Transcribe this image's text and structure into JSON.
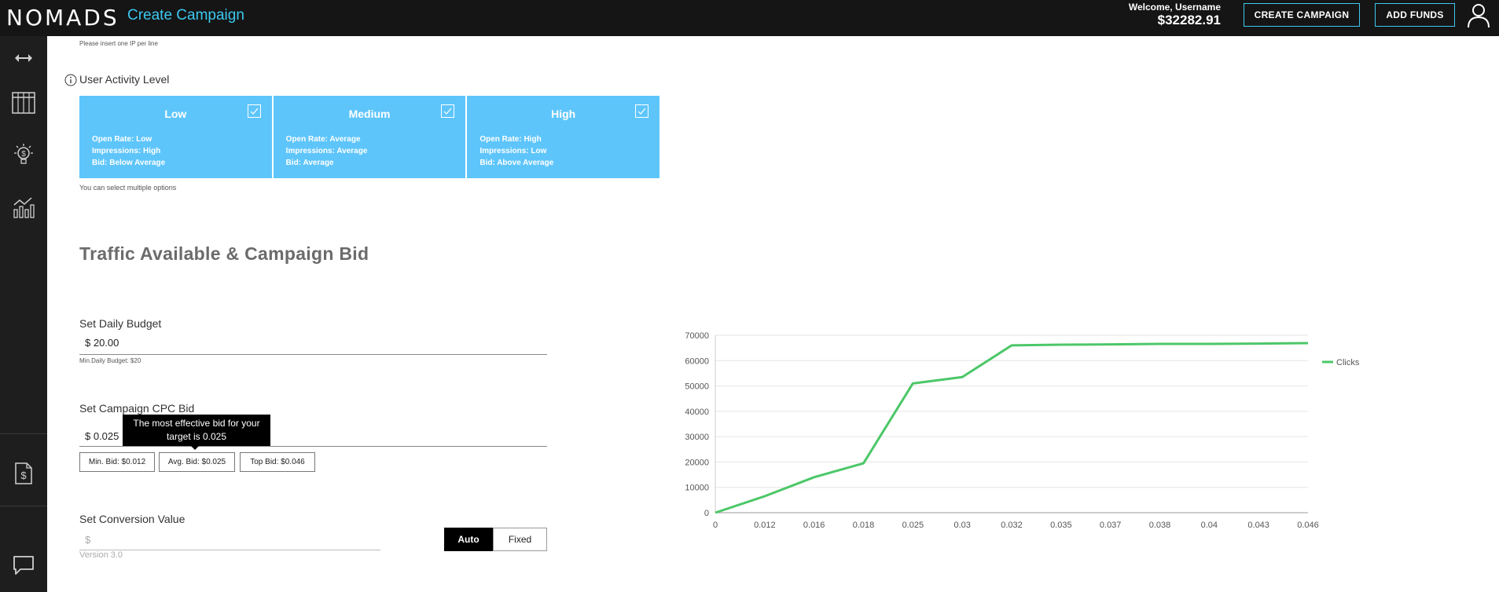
{
  "header": {
    "logo": "NOMADS",
    "page_title": "Create Campaign",
    "welcome": "Welcome, Username",
    "balance": "$32282.91",
    "create_campaign_label": "CREATE CAMPAIGN",
    "add_funds_label": "ADD FUNDS"
  },
  "sidebar": {
    "items": [
      {
        "icon": "arrows-horizontal-icon"
      },
      {
        "icon": "table-icon"
      },
      {
        "icon": "lightbulb-dollar-icon"
      },
      {
        "icon": "analytics-chart-icon"
      },
      {
        "icon": "invoice-dollar-icon"
      },
      {
        "icon": "chat-icon"
      }
    ]
  },
  "ip_hint": "Please insert one IP per line",
  "activity": {
    "label": "User Activity Level",
    "hint": "You can select multiple options",
    "cards": [
      {
        "title": "Low",
        "lines": [
          "Open Rate: Low",
          "Impressions: High",
          "Bid: Below Average"
        ]
      },
      {
        "title": "Medium",
        "lines": [
          "Open Rate: Average",
          "Impressions: Average",
          "Bid: Average"
        ]
      },
      {
        "title": "High",
        "lines": [
          "Open Rate: High",
          "Impressions: Low",
          "Bid: Above Average"
        ]
      }
    ]
  },
  "traffic_title": "Traffic Available & Campaign Bid",
  "budget": {
    "label": "Set Daily Budget",
    "value": "$ 20.00",
    "hint": "Min.Daily Budget: $20"
  },
  "cpc": {
    "label": "Set Campaign CPC Bid",
    "value": "$ 0.025",
    "tooltip_line1": "The most effective bid for your",
    "tooltip_line2": "target is 0.025",
    "min_bid": "Min. Bid: $0.012",
    "avg_bid": "Avg. Bid: $0.025",
    "top_bid": "Top Bid: $0.046"
  },
  "conversion": {
    "label": "Set Conversion Value",
    "placeholder": "$",
    "auto_label": "Auto",
    "fixed_label": "Fixed",
    "selected": "Auto"
  },
  "version": "Version 3.0",
  "colors": {
    "accent": "#3cc8ef",
    "card_bg": "#5ec5fb",
    "line": "#4cc768"
  },
  "chart_data": {
    "type": "line",
    "categories": [
      "0",
      "0.012",
      "0.016",
      "0.018",
      "0.025",
      "0.03",
      "0.032",
      "0.035",
      "0.037",
      "0.038",
      "0.04",
      "0.043",
      "0.046"
    ],
    "series": [
      {
        "name": "Clicks",
        "values": [
          0,
          6500,
          14000,
          19500,
          51000,
          53500,
          66000,
          66300,
          66400,
          66600,
          66600,
          66700,
          66900
        ]
      }
    ],
    "ylim": [
      0,
      70000
    ],
    "yticks": [
      0,
      10000,
      20000,
      30000,
      40000,
      50000,
      60000,
      70000
    ],
    "grid": true,
    "legend": "right"
  }
}
